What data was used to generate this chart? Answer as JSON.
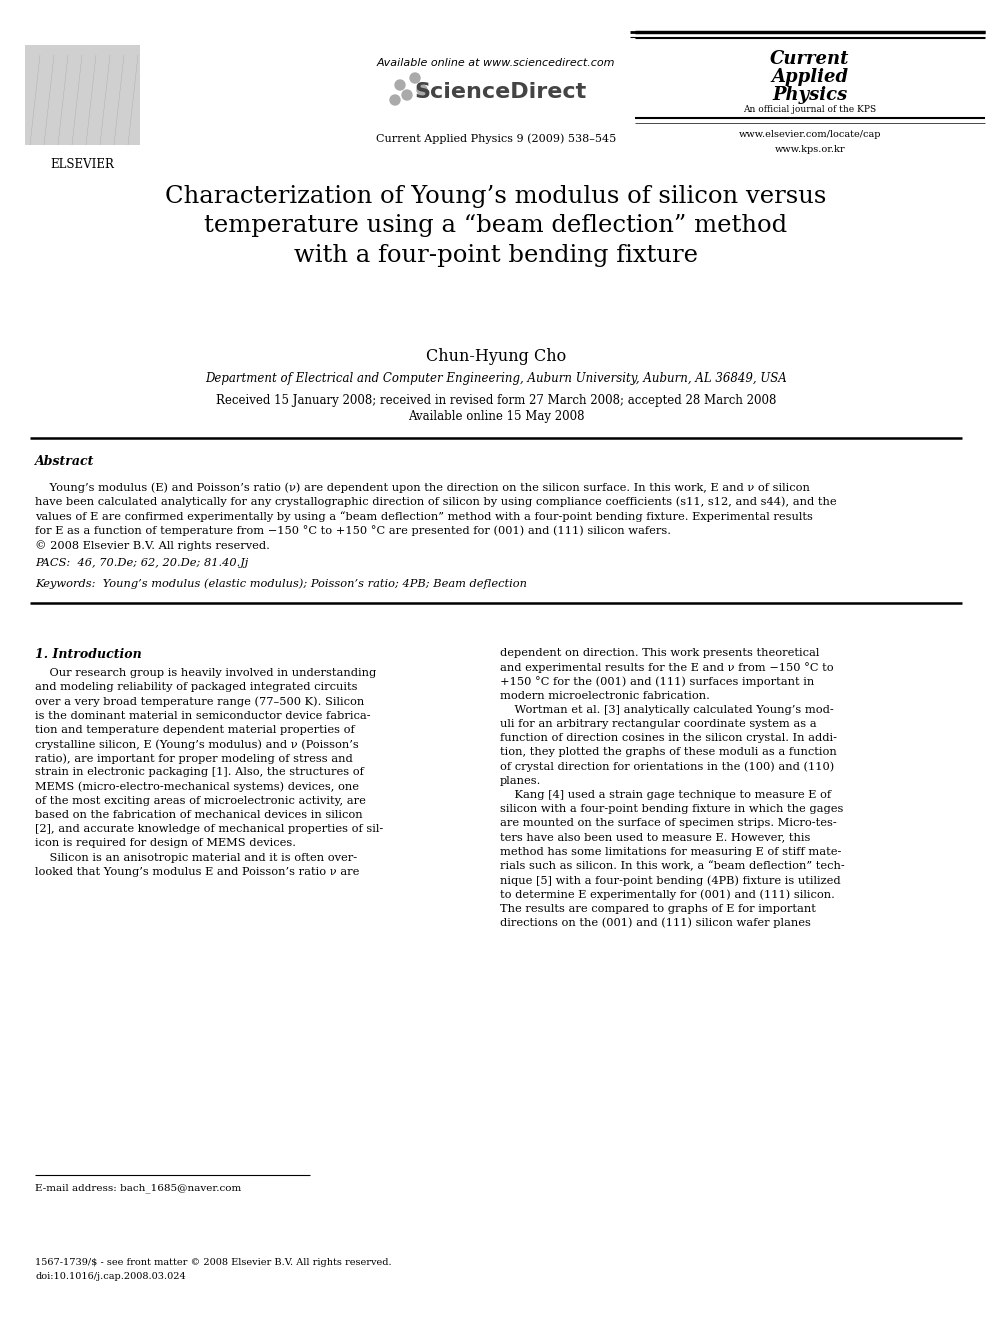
{
  "background_color": "#ffffff",
  "title": "Characterization of Young’s modulus of silicon versus\ntemperature using a “beam deflection” method\nwith a four-point bending fixture",
  "author": "Chun-Hyung Cho",
  "affiliation": "Department of Electrical and Computer Engineering, Auburn University, Auburn, AL 36849, USA",
  "dates_line1": "Received 15 January 2008; received in revised form 27 March 2008; accepted 28 March 2008",
  "dates_line2": "Available online 15 May 2008",
  "abstract_title": "Abstract",
  "abstract_body": "    Young’s modulus (E) and Poisson’s ratio (ν) are dependent upon the direction on the silicon surface. In this work, E and ν of silicon\nhave been calculated analytically for any crystallographic direction of silicon by using compliance coefficients (s11, s12, and s44), and the\nvalues of E are confirmed experimentally by using a “beam deflection” method with a four-point bending fixture. Experimental results\nfor E as a function of temperature from −150 °C to +150 °C are presented for (001) and (111) silicon wafers.\n© 2008 Elsevier B.V. All rights reserved.",
  "pacs": "PACS:  46, 70.De; 62, 20.De; 81.40.Jj",
  "keywords": "Keywords:  Young’s modulus (elastic modulus); Poisson’s ratio; 4PB; Beam deflection",
  "section1_title": "1. Introduction",
  "col1_text": "    Our research group is heavily involved in understanding\nand modeling reliability of packaged integrated circuits\nover a very broad temperature range (77–500 K). Silicon\nis the dominant material in semiconductor device fabrica-\ntion and temperature dependent material properties of\ncrystalline silicon, E (Young’s modulus) and ν (Poisson’s\nratio), are important for proper modeling of stress and\nstrain in electronic packaging [1]. Also, the structures of\nMEMS (micro-electro-mechanical systems) devices, one\nof the most exciting areas of microelectronic activity, are\nbased on the fabrication of mechanical devices in silicon\n[2], and accurate knowledge of mechanical properties of sil-\nicon is required for design of MEMS devices.\n    Silicon is an anisotropic material and it is often over-\nlooked that Young’s modulus E and Poisson’s ratio ν are",
  "col2_text": "dependent on direction. This work presents theoretical\nand experimental results for the E and ν from −150 °C to\n+150 °C for the (001) and (111) surfaces important in\nmodern microelectronic fabrication.\n    Wortman et al. [3] analytically calculated Young’s mod-\nuli for an arbitrary rectangular coordinate system as a\nfunction of direction cosines in the silicon crystal. In addi-\ntion, they plotted the graphs of these moduli as a function\nof crystal direction for orientations in the (100) and (110)\nplanes.\n    Kang [4] used a strain gage technique to measure E of\nsilicon with a four-point bending fixture in which the gages\nare mounted on the surface of specimen strips. Micro-tes-\nters have also been used to measure E. However, this\nmethod has some limitations for measuring E of stiff mate-\nrials such as silicon. In this work, a “beam deflection” tech-\nnique [5] with a four-point bending (4PB) fixture is utilized\nto determine E experimentally for (001) and (111) silicon.\nThe results are compared to graphs of E for important\ndirections on the (001) and (111) silicon wafer planes",
  "footer_email": "E-mail address: bach_1685@naver.com",
  "footer_issn_line1": "1567-1739/$ - see front matter © 2008 Elsevier B.V. All rights reserved.",
  "footer_issn_line2": "doi:10.1016/j.cap.2008.03.024",
  "available_online": "Available online at www.sciencedirect.com",
  "sciencedirect": "ScienceDirect",
  "journal_cite": "Current Applied Physics 9 (2009) 538–545",
  "cap_line1": "Current",
  "cap_line2": "Applied",
  "cap_line3": "Physics",
  "cap_subtitle": "An official journal of the KPS",
  "cap_url1": "www.elsevier.com/locate/cap",
  "cap_url2": "www.kps.or.kr"
}
